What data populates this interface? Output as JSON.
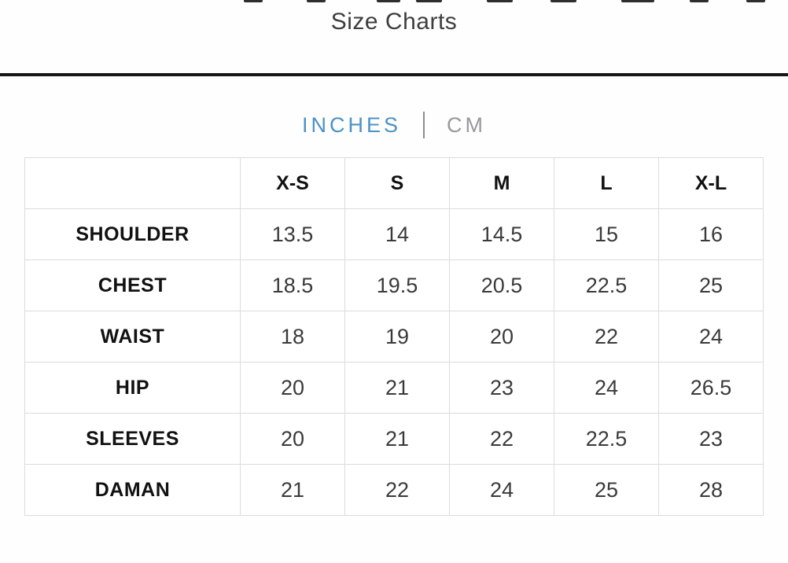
{
  "header": {
    "title": "Size Charts"
  },
  "unit_toggle": {
    "options": [
      {
        "label": "INCHES",
        "active": true
      },
      {
        "label": "CM",
        "active": false
      }
    ]
  },
  "size_table": {
    "columns": [
      "X-S",
      "S",
      "M",
      "L",
      "X-L"
    ],
    "rows": [
      {
        "label": "SHOULDER",
        "values": [
          "13.5",
          "14",
          "14.5",
          "15",
          "16"
        ]
      },
      {
        "label": "CHEST",
        "values": [
          "18.5",
          "19.5",
          "20.5",
          "22.5",
          "25"
        ]
      },
      {
        "label": "WAIST",
        "values": [
          "18",
          "19",
          "20",
          "22",
          "24"
        ]
      },
      {
        "label": "HIP",
        "values": [
          "20",
          "21",
          "23",
          "24",
          "26.5"
        ]
      },
      {
        "label": "SLEEVES",
        "values": [
          "20",
          "21",
          "22",
          "22.5",
          "23"
        ]
      },
      {
        "label": "DAMAN",
        "values": [
          "21",
          "22",
          "24",
          "25",
          "28"
        ]
      }
    ]
  },
  "colors": {
    "accent_blue": "#4d92c6",
    "inactive_gray": "#97999b",
    "rule_black": "#161616",
    "table_border": "#dcdcdc"
  }
}
